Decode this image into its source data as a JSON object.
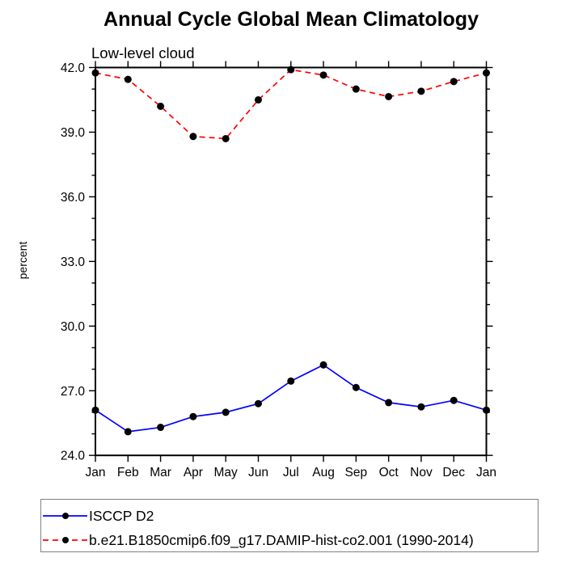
{
  "page": {
    "background": "#ffffff"
  },
  "chart_data": {
    "type": "line",
    "title": "Annual Cycle Global Mean Climatology",
    "subtitle": "Low-level cloud",
    "xlabel": "",
    "ylabel": "percent",
    "categories": [
      "Jan",
      "Feb",
      "Mar",
      "Apr",
      "May",
      "Jun",
      "Jul",
      "Aug",
      "Sep",
      "Oct",
      "Nov",
      "Dec",
      "Jan"
    ],
    "ylim": [
      24.0,
      42.0
    ],
    "y_major_step": 3.0,
    "y_minor_step": 1.0,
    "y_major_tick_labels": [
      "24.0",
      "27.0",
      "30.0",
      "33.0",
      "36.0",
      "39.0",
      "42.0"
    ],
    "grid": "off",
    "axis_color": "#000000",
    "legend_position": "bottom-left",
    "series": [
      {
        "name": "ISCCP D2",
        "color": "#0000ff",
        "line_style": "solid",
        "marker": "filled-circle",
        "marker_color": "#000000",
        "values": [
          26.1,
          25.1,
          25.3,
          25.8,
          26.0,
          26.4,
          27.45,
          28.2,
          27.15,
          26.45,
          26.25,
          26.55,
          26.1
        ]
      },
      {
        "name": "b.e21.B1850cmip6.f09_g17.DAMIP-hist-co2.001 (1990-2014)",
        "color": "#ff0000",
        "line_style": "dashed",
        "marker": "filled-circle",
        "marker_color": "#000000",
        "values": [
          41.75,
          41.45,
          40.2,
          38.8,
          38.7,
          40.5,
          41.9,
          41.65,
          41.0,
          40.65,
          40.9,
          41.35,
          41.75
        ]
      }
    ]
  }
}
